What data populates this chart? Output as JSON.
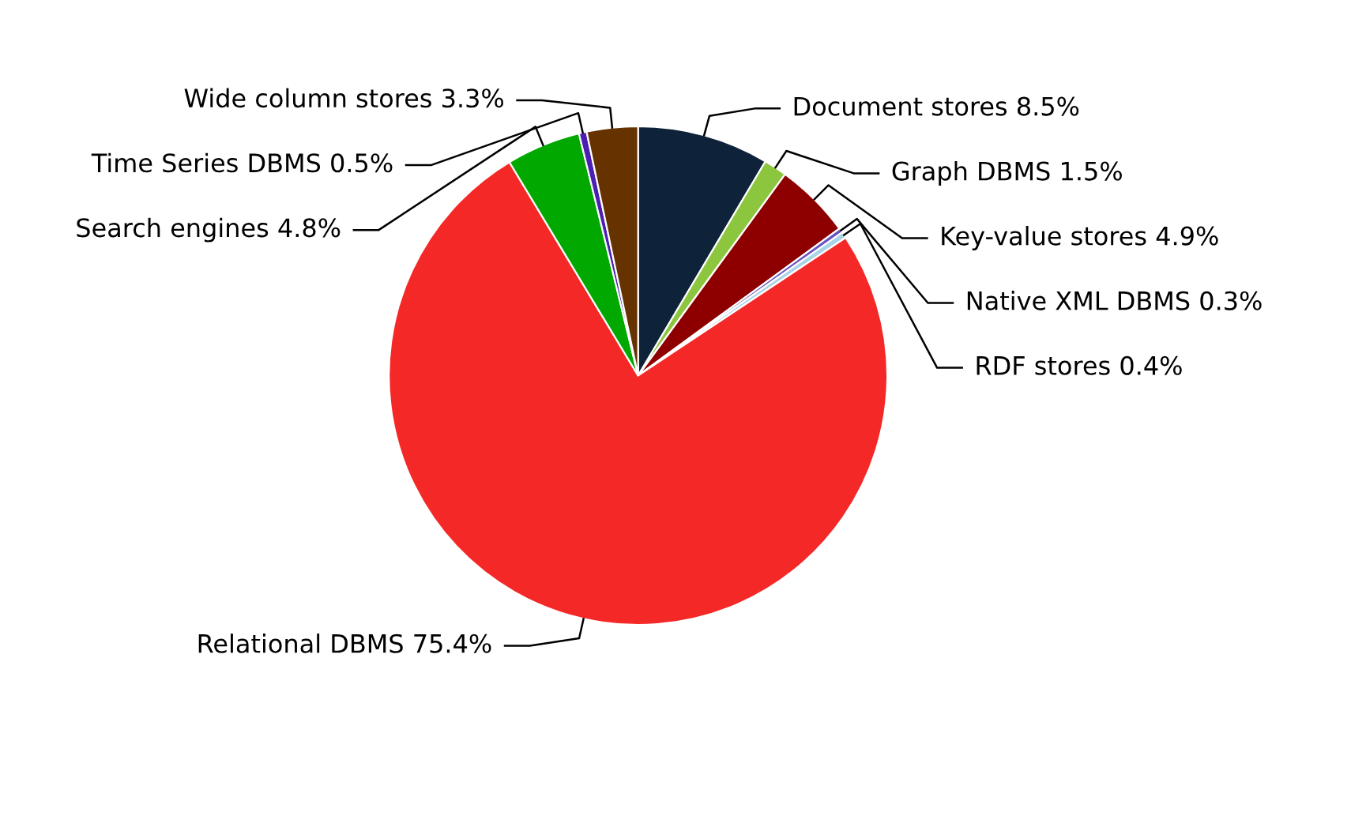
{
  "chart_data": {
    "type": "pie",
    "categories": [
      "Document stores",
      "Graph DBMS",
      "Key-value stores",
      "Native XML DBMS",
      "RDF stores",
      "Relational DBMS",
      "Search engines",
      "Time Series DBMS",
      "Wide column stores"
    ],
    "values": [
      8.5,
      1.5,
      4.9,
      0.3,
      0.4,
      75.4,
      4.8,
      0.5,
      3.3
    ],
    "colors": [
      "#0e2239",
      "#8cc63e",
      "#8e0000",
      "#6a51c0",
      "#a8d4e6",
      "#f52828",
      "#00a800",
      "#4b1fb0",
      "#663300"
    ],
    "value_labels": [
      "8.5%",
      "1.5%",
      "4.9%",
      "0.3%",
      "0.4%",
      "75.4%",
      "4.8%",
      "0.5%",
      "3.3%"
    ]
  }
}
